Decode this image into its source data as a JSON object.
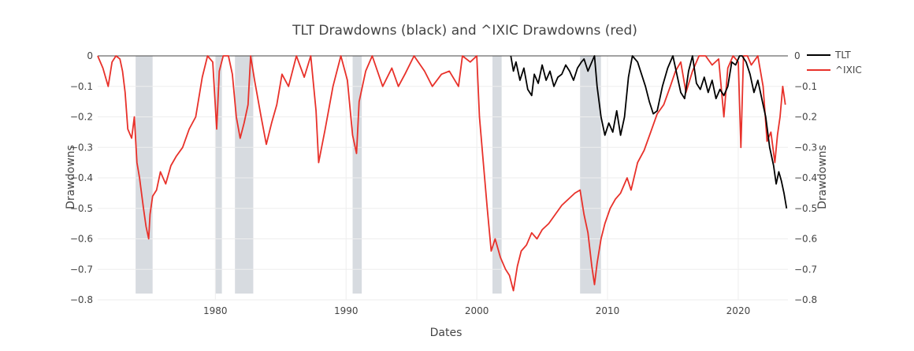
{
  "chart_data": {
    "type": "line",
    "title": "TLT Drawdowns (black) and ^IXIC Drawdowns (red)",
    "xlabel": "Dates",
    "ylabel_left": "Drawdowns",
    "ylabel_right": "Drawdowns",
    "xlim": [
      1971.0,
      2023.8
    ],
    "ylim": [
      -0.8,
      0.0
    ],
    "x_ticks": [
      1980,
      1990,
      2000,
      2010,
      2020
    ],
    "y_ticks": [
      0,
      -0.1,
      -0.2,
      -0.3,
      -0.4,
      -0.5,
      -0.6,
      -0.7,
      -0.8
    ],
    "y_tick_labels": [
      "0",
      "−0.1",
      "−0.2",
      "−0.3",
      "−0.4",
      "−0.5",
      "−0.6",
      "−0.7",
      "−0.8"
    ],
    "grid": true,
    "legend_position": "top-right",
    "colors": {
      "tlt": "#000000",
      "ixic": "#e8312a",
      "recession": "#d7dbe0"
    },
    "recession_bands": [
      {
        "start": 1973.9,
        "end": 1975.2
      },
      {
        "start": 1980.0,
        "end": 1980.5
      },
      {
        "start": 1981.5,
        "end": 1982.9
      },
      {
        "start": 1990.5,
        "end": 1991.2
      },
      {
        "start": 2001.2,
        "end": 2001.9
      },
      {
        "start": 2007.9,
        "end": 2009.5
      }
    ],
    "series": [
      {
        "name": "TLT",
        "x": [
          2002.6,
          2002.8,
          2003.0,
          2003.3,
          2003.6,
          2003.9,
          2004.2,
          2004.4,
          2004.7,
          2005.0,
          2005.3,
          2005.6,
          2005.9,
          2006.2,
          2006.5,
          2006.8,
          2007.1,
          2007.4,
          2007.7,
          2008.0,
          2008.2,
          2008.5,
          2008.8,
          2009.0,
          2009.2,
          2009.5,
          2009.8,
          2010.1,
          2010.4,
          2010.7,
          2011.0,
          2011.3,
          2011.6,
          2011.9,
          2012.3,
          2012.6,
          2012.9,
          2013.2,
          2013.5,
          2013.8,
          2014.2,
          2014.6,
          2015.0,
          2015.3,
          2015.6,
          2015.9,
          2016.2,
          2016.5,
          2016.8,
          2017.1,
          2017.4,
          2017.7,
          2018.0,
          2018.3,
          2018.6,
          2018.9,
          2019.2,
          2019.5,
          2019.8,
          2020.1,
          2020.3,
          2020.6,
          2020.9,
          2021.2,
          2021.5,
          2021.8,
          2022.1,
          2022.4,
          2022.7,
          2022.9,
          2023.1,
          2023.3,
          2023.5,
          2023.7
        ],
        "y": [
          0,
          -0.05,
          -0.02,
          -0.08,
          -0.04,
          -0.11,
          -0.13,
          -0.06,
          -0.09,
          -0.03,
          -0.08,
          -0.05,
          -0.1,
          -0.07,
          -0.06,
          -0.03,
          -0.05,
          -0.08,
          -0.04,
          -0.02,
          -0.01,
          -0.05,
          -0.02,
          0,
          -0.1,
          -0.2,
          -0.26,
          -0.22,
          -0.25,
          -0.18,
          -0.26,
          -0.2,
          -0.07,
          0,
          -0.02,
          -0.06,
          -0.1,
          -0.15,
          -0.19,
          -0.18,
          -0.1,
          -0.04,
          0,
          -0.06,
          -0.12,
          -0.14,
          -0.05,
          0,
          -0.09,
          -0.11,
          -0.07,
          -0.12,
          -0.08,
          -0.14,
          -0.11,
          -0.13,
          -0.1,
          -0.02,
          -0.03,
          0,
          0.0,
          -0.02,
          -0.06,
          -0.12,
          -0.08,
          -0.14,
          -0.2,
          -0.3,
          -0.36,
          -0.42,
          -0.38,
          -0.41,
          -0.45,
          -0.5
        ]
      },
      {
        "name": "^IXIC",
        "x": [
          1971.0,
          1971.4,
          1971.8,
          1972.1,
          1972.4,
          1972.7,
          1972.9,
          1973.1,
          1973.3,
          1973.6,
          1973.8,
          1974.0,
          1974.2,
          1974.5,
          1974.7,
          1974.9,
          1975.0,
          1975.2,
          1975.5,
          1975.8,
          1976.2,
          1976.6,
          1977.0,
          1977.5,
          1978.0,
          1978.5,
          1979.0,
          1979.4,
          1979.8,
          1980.1,
          1980.3,
          1980.6,
          1981.0,
          1981.3,
          1981.6,
          1981.9,
          1982.2,
          1982.5,
          1982.7,
          1983.0,
          1983.5,
          1983.9,
          1984.3,
          1984.7,
          1985.1,
          1985.6,
          1986.2,
          1986.8,
          1987.3,
          1987.7,
          1987.9,
          1988.4,
          1989.0,
          1989.6,
          1990.1,
          1990.5,
          1990.8,
          1991.0,
          1991.5,
          1992.0,
          1992.8,
          1993.5,
          1994.0,
          1994.5,
          1995.2,
          1996.0,
          1996.6,
          1997.3,
          1997.9,
          1998.6,
          1998.9,
          1999.5,
          2000.0,
          2000.2,
          2000.5,
          2000.8,
          2001.1,
          2001.4,
          2001.8,
          2002.2,
          2002.5,
          2002.8,
          2003.1,
          2003.4,
          2003.8,
          2004.2,
          2004.6,
          2005.0,
          2005.5,
          2006.0,
          2006.5,
          2007.0,
          2007.5,
          2007.9,
          2008.2,
          2008.5,
          2008.8,
          2009.0,
          2009.2,
          2009.5,
          2009.8,
          2010.2,
          2010.6,
          2011.0,
          2011.5,
          2011.8,
          2012.3,
          2012.8,
          2013.3,
          2013.8,
          2014.3,
          2014.8,
          2015.2,
          2015.6,
          2016.0,
          2016.5,
          2017.0,
          2017.5,
          2018.0,
          2018.5,
          2018.9,
          2019.2,
          2019.6,
          2020.0,
          2020.2,
          2020.4,
          2020.7,
          2021.0,
          2021.5,
          2021.9,
          2022.2,
          2022.5,
          2022.8,
          2023.0,
          2023.2,
          2023.4,
          2023.6
        ],
        "y": [
          0,
          -0.04,
          -0.1,
          -0.02,
          0,
          -0.01,
          -0.05,
          -0.12,
          -0.24,
          -0.27,
          -0.2,
          -0.35,
          -0.4,
          -0.5,
          -0.56,
          -0.6,
          -0.52,
          -0.46,
          -0.44,
          -0.38,
          -0.42,
          -0.36,
          -0.33,
          -0.3,
          -0.24,
          -0.2,
          -0.07,
          0,
          -0.02,
          -0.24,
          -0.05,
          0,
          0,
          -0.06,
          -0.2,
          -0.27,
          -0.22,
          -0.16,
          0,
          -0.08,
          -0.2,
          -0.29,
          -0.22,
          -0.16,
          -0.06,
          -0.1,
          0,
          -0.07,
          0,
          -0.18,
          -0.35,
          -0.24,
          -0.1,
          0,
          -0.08,
          -0.26,
          -0.32,
          -0.15,
          -0.05,
          0,
          -0.1,
          -0.04,
          -0.1,
          -0.06,
          0,
          -0.05,
          -0.1,
          -0.06,
          -0.05,
          -0.1,
          0,
          -0.02,
          0,
          -0.2,
          -0.35,
          -0.5,
          -0.64,
          -0.6,
          -0.66,
          -0.7,
          -0.72,
          -0.77,
          -0.69,
          -0.64,
          -0.62,
          -0.58,
          -0.6,
          -0.57,
          -0.55,
          -0.52,
          -0.49,
          -0.47,
          -0.45,
          -0.44,
          -0.52,
          -0.58,
          -0.69,
          -0.75,
          -0.68,
          -0.6,
          -0.55,
          -0.5,
          -0.47,
          -0.45,
          -0.4,
          -0.44,
          -0.35,
          -0.31,
          -0.25,
          -0.19,
          -0.16,
          -0.1,
          -0.05,
          -0.02,
          -0.12,
          -0.05,
          0,
          0,
          -0.03,
          -0.01,
          -0.2,
          -0.04,
          0,
          -0.02,
          -0.3,
          0,
          0,
          -0.03,
          0,
          -0.1,
          -0.28,
          -0.25,
          -0.35,
          -0.26,
          -0.2,
          -0.1,
          -0.16
        ]
      }
    ]
  }
}
